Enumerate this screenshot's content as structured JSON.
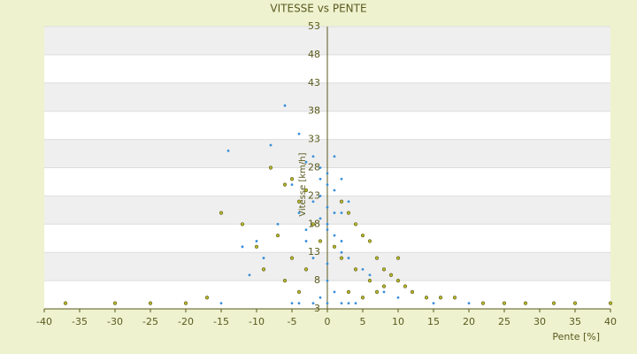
{
  "chart_data": {
    "type": "scatter",
    "title": "VITESSE vs PENTE",
    "x_label": "Pente [%]",
    "y_label": "Vitesse [km/h]",
    "xlim": [
      -40,
      40
    ],
    "xticks": [
      -40,
      -35,
      -30,
      -25,
      -20,
      -15,
      -10,
      -5,
      0,
      5,
      10,
      15,
      20,
      25,
      30,
      35,
      40
    ],
    "ylim": [
      3,
      53
    ],
    "yticks": [
      3,
      8,
      13,
      18,
      23,
      28,
      33,
      38,
      43,
      48,
      53
    ],
    "grid": true,
    "series": [
      {
        "color": "#3a8fd8",
        "x": [
          -6,
          -14,
          -4,
          -8,
          -3,
          -2,
          -1,
          0,
          1,
          2,
          -5,
          -3,
          -1,
          0,
          1,
          3,
          -2,
          -4,
          0,
          2,
          4,
          -7,
          -10,
          -12,
          -1,
          0,
          1,
          -3,
          -2,
          0,
          1,
          2,
          3,
          5,
          6,
          -9,
          -11,
          -6,
          0,
          -1,
          1,
          2,
          -2,
          0,
          3,
          4,
          -4,
          -5,
          8,
          10,
          -15,
          -20,
          -30,
          15,
          20,
          -1,
          0,
          2,
          -3,
          1
        ],
        "y": [
          39,
          31,
          34,
          32,
          29,
          30,
          28,
          27,
          30,
          26,
          25,
          24,
          26,
          25,
          24,
          22,
          22,
          20,
          21,
          20,
          18,
          18,
          15,
          14,
          19,
          17,
          16,
          15,
          12,
          11,
          14,
          13,
          12,
          10,
          9,
          12,
          9,
          8,
          8,
          5,
          6,
          4,
          4,
          4,
          4,
          4,
          4,
          4,
          6,
          5,
          4,
          4,
          4,
          4,
          4,
          23,
          18,
          15,
          17,
          20
        ]
      },
      {
        "color": "#b8b82a",
        "x": [
          -8,
          -6,
          -5,
          -4,
          -3,
          -15,
          -12,
          -10,
          -7,
          -5,
          -3,
          2,
          3,
          4,
          5,
          6,
          7,
          8,
          9,
          10,
          11,
          12,
          14,
          16,
          18,
          -37,
          -30,
          -25,
          -20,
          -17,
          22,
          25,
          28,
          32,
          35,
          40,
          -2,
          -1,
          1,
          2,
          4,
          6,
          8,
          -9,
          -6,
          -4,
          3,
          5,
          7,
          10
        ],
        "y": [
          28,
          25,
          26,
          22,
          24,
          20,
          18,
          14,
          16,
          12,
          10,
          22,
          20,
          18,
          16,
          15,
          12,
          10,
          9,
          8,
          7,
          6,
          5,
          5,
          5,
          4,
          4,
          4,
          4,
          5,
          4,
          4,
          4,
          4,
          4,
          4,
          18,
          15,
          14,
          12,
          10,
          8,
          7,
          10,
          8,
          6,
          6,
          5,
          6,
          12
        ]
      }
    ]
  }
}
